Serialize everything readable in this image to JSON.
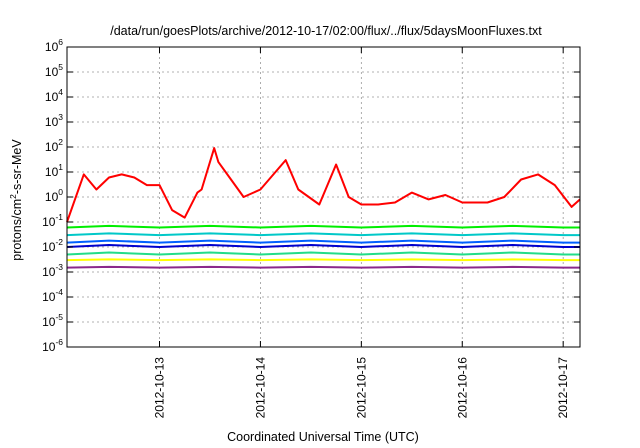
{
  "chart_data": {
    "type": "line",
    "title": "/data/run/goesPlots/archive/2012-10-17/02:00/flux/../flux/5daysMoonFluxes.txt",
    "xlabel": "Coordinated Universal Time (UTC)",
    "ylabel": "protons/cm2-s-sr-MeV",
    "ylabel_parts": {
      "pre": "protons/cm",
      "sup": "2",
      "post": "-s-sr-MeV"
    },
    "y_scale": "log",
    "ylim": [
      1e-06,
      1000000.0
    ],
    "y_ticks": [
      {
        "value": 1e-06,
        "base": "10",
        "exp": "-6"
      },
      {
        "value": 1e-05,
        "base": "10",
        "exp": "-5"
      },
      {
        "value": 0.0001,
        "base": "10",
        "exp": "-4"
      },
      {
        "value": 0.001,
        "base": "10",
        "exp": "-3"
      },
      {
        "value": 0.01,
        "base": "10",
        "exp": "-2"
      },
      {
        "value": 0.1,
        "base": "10",
        "exp": "-1"
      },
      {
        "value": 1,
        "base": "10",
        "exp": "0"
      },
      {
        "value": 10,
        "base": "10",
        "exp": "1"
      },
      {
        "value": 100,
        "base": "10",
        "exp": "2"
      },
      {
        "value": 1000,
        "base": "10",
        "exp": "3"
      },
      {
        "value": 10000,
        "base": "10",
        "exp": "4"
      },
      {
        "value": 100000,
        "base": "10",
        "exp": "5"
      },
      {
        "value": 1000000,
        "base": "10",
        "exp": "6"
      }
    ],
    "xlim": [
      "2012-10-12T02:00",
      "2012-10-17T04:00"
    ],
    "x_ticks": [
      "2012-10-13",
      "2012-10-14",
      "2012-10-15",
      "2012-10-16",
      "2012-10-17"
    ],
    "grid": true,
    "legend": "none",
    "series": [
      {
        "color": "#ff0000",
        "x": [
          "2012-10-12T02:00",
          "2012-10-12T06:00",
          "2012-10-12T09:00",
          "2012-10-12T12:00",
          "2012-10-12T15:00",
          "2012-10-12T18:00",
          "2012-10-12T21:00",
          "2012-10-13T00:00",
          "2012-10-13T03:00",
          "2012-10-13T06:00",
          "2012-10-13T09:00",
          "2012-10-13T10:00",
          "2012-10-13T13:00",
          "2012-10-13T14:00",
          "2012-10-13T17:00",
          "2012-10-13T20:00",
          "2012-10-14T00:00",
          "2012-10-14T06:00",
          "2012-10-14T09:00",
          "2012-10-14T14:00",
          "2012-10-14T18:00",
          "2012-10-14T21:00",
          "2012-10-15T00:00",
          "2012-10-15T04:00",
          "2012-10-15T08:00",
          "2012-10-15T12:00",
          "2012-10-15T16:00",
          "2012-10-15T20:00",
          "2012-10-16T00:00",
          "2012-10-16T06:00",
          "2012-10-16T10:00",
          "2012-10-16T14:00",
          "2012-10-16T18:00",
          "2012-10-16T22:00",
          "2012-10-17T02:00",
          "2012-10-17T04:00"
        ],
        "y": [
          0.1,
          8,
          2,
          6,
          8,
          6,
          3,
          3,
          0.3,
          0.15,
          1.5,
          2,
          90,
          25,
          5,
          1,
          2,
          30,
          2,
          0.5,
          20,
          1,
          0.5,
          0.5,
          0.6,
          1.5,
          0.8,
          1.2,
          0.6,
          0.6,
          1,
          5,
          8,
          3,
          0.4,
          0.8
        ]
      },
      {
        "color": "#00ee00",
        "x": [
          "2012-10-12T02:00",
          "2012-10-12T12:00",
          "2012-10-13T00:00",
          "2012-10-13T12:00",
          "2012-10-14T00:00",
          "2012-10-14T12:00",
          "2012-10-15T00:00",
          "2012-10-15T12:00",
          "2012-10-16T00:00",
          "2012-10-16T12:00",
          "2012-10-17T00:00",
          "2012-10-17T04:00"
        ],
        "y": [
          0.06,
          0.07,
          0.06,
          0.07,
          0.06,
          0.07,
          0.06,
          0.07,
          0.06,
          0.07,
          0.06,
          0.06
        ]
      },
      {
        "color": "#00c8c8",
        "x": [
          "2012-10-12T02:00",
          "2012-10-12T12:00",
          "2012-10-13T00:00",
          "2012-10-13T12:00",
          "2012-10-14T00:00",
          "2012-10-14T12:00",
          "2012-10-15T00:00",
          "2012-10-15T12:00",
          "2012-10-16T00:00",
          "2012-10-16T12:00",
          "2012-10-17T00:00",
          "2012-10-17T04:00"
        ],
        "y": [
          0.03,
          0.035,
          0.03,
          0.035,
          0.03,
          0.035,
          0.03,
          0.035,
          0.03,
          0.035,
          0.03,
          0.03
        ]
      },
      {
        "color": "#0060ff",
        "x": [
          "2012-10-12T02:00",
          "2012-10-12T12:00",
          "2012-10-13T00:00",
          "2012-10-13T12:00",
          "2012-10-14T00:00",
          "2012-10-14T12:00",
          "2012-10-15T00:00",
          "2012-10-15T12:00",
          "2012-10-16T00:00",
          "2012-10-16T12:00",
          "2012-10-17T00:00",
          "2012-10-17T04:00"
        ],
        "y": [
          0.015,
          0.018,
          0.015,
          0.018,
          0.015,
          0.018,
          0.015,
          0.018,
          0.015,
          0.018,
          0.015,
          0.015
        ]
      },
      {
        "color": "#0000cc",
        "x": [
          "2012-10-12T02:00",
          "2012-10-12T12:00",
          "2012-10-13T00:00",
          "2012-10-13T12:00",
          "2012-10-14T00:00",
          "2012-10-14T12:00",
          "2012-10-15T00:00",
          "2012-10-15T12:00",
          "2012-10-16T00:00",
          "2012-10-16T12:00",
          "2012-10-17T00:00",
          "2012-10-17T04:00"
        ],
        "y": [
          0.01,
          0.012,
          0.01,
          0.012,
          0.01,
          0.012,
          0.01,
          0.012,
          0.01,
          0.012,
          0.01,
          0.01
        ]
      },
      {
        "color": "#22dd88",
        "x": [
          "2012-10-12T02:00",
          "2012-10-12T12:00",
          "2012-10-13T00:00",
          "2012-10-13T12:00",
          "2012-10-14T00:00",
          "2012-10-14T12:00",
          "2012-10-15T00:00",
          "2012-10-15T12:00",
          "2012-10-16T00:00",
          "2012-10-16T12:00",
          "2012-10-17T00:00",
          "2012-10-17T04:00"
        ],
        "y": [
          0.005,
          0.006,
          0.005,
          0.006,
          0.005,
          0.006,
          0.005,
          0.006,
          0.005,
          0.006,
          0.005,
          0.005
        ]
      },
      {
        "color": "#ffff00",
        "x": [
          "2012-10-12T02:00",
          "2012-10-12T12:00",
          "2012-10-13T00:00",
          "2012-10-13T12:00",
          "2012-10-14T00:00",
          "2012-10-14T12:00",
          "2012-10-15T00:00",
          "2012-10-15T12:00",
          "2012-10-16T00:00",
          "2012-10-16T12:00",
          "2012-10-17T00:00",
          "2012-10-17T04:00"
        ],
        "y": [
          0.003,
          0.0032,
          0.003,
          0.0032,
          0.003,
          0.0032,
          0.003,
          0.0032,
          0.003,
          0.0032,
          0.003,
          0.003
        ]
      },
      {
        "color": "#8b2a8b",
        "x": [
          "2012-10-12T02:00",
          "2012-10-12T12:00",
          "2012-10-13T00:00",
          "2012-10-13T12:00",
          "2012-10-14T00:00",
          "2012-10-14T12:00",
          "2012-10-15T00:00",
          "2012-10-15T12:00",
          "2012-10-16T00:00",
          "2012-10-16T12:00",
          "2012-10-17T00:00",
          "2012-10-17T04:00"
        ],
        "y": [
          0.0015,
          0.0016,
          0.0015,
          0.0016,
          0.0015,
          0.0016,
          0.0015,
          0.0016,
          0.0015,
          0.0016,
          0.0015,
          0.0015
        ]
      }
    ]
  }
}
